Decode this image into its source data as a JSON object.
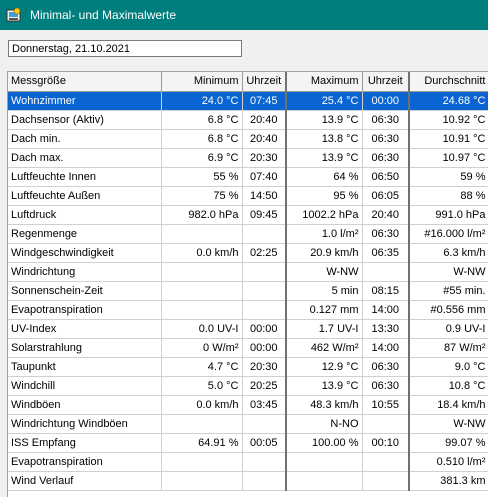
{
  "window": {
    "title": "Minimal- und Maximalwerte"
  },
  "date_field": {
    "value": "Donnerstag, 21.10.2021"
  },
  "table": {
    "headers": [
      "Messgröße",
      "Minimum",
      "Uhrzeit",
      "Maximum",
      "Uhrzeit",
      "Durchschnitt"
    ],
    "rows": [
      [
        "Wohnzimmer",
        "24.0 °C",
        "07:45",
        "25.4 °C",
        "00:00",
        "24.68 °C"
      ],
      [
        "Dachsensor (Aktiv)",
        "6.8 °C",
        "20:40",
        "13.9 °C",
        "06:30",
        "10.92 °C"
      ],
      [
        "Dach min.",
        "6.8 °C",
        "20:40",
        "13.8 °C",
        "06:30",
        "10.91 °C"
      ],
      [
        "Dach max.",
        "6.9 °C",
        "20:30",
        "13.9 °C",
        "06:30",
        "10.97 °C"
      ],
      [
        "Luftfeuchte Innen",
        "55 %",
        "07:40",
        "64 %",
        "06:50",
        "59 %"
      ],
      [
        "Luftfeuchte Außen",
        "75 %",
        "14:50",
        "95 %",
        "06:05",
        "88 %"
      ],
      [
        "Luftdruck",
        "982.0 hPa",
        "09:45",
        "1002.2 hPa",
        "20:40",
        "991.0 hPa"
      ],
      [
        "Regenmenge",
        "",
        "",
        "1.0 l/m²",
        "06:30",
        "#16.000 l/m²"
      ],
      [
        "Windgeschwindigkeit",
        "0.0 km/h",
        "02:25",
        "20.9 km/h",
        "06:35",
        "6.3 km/h"
      ],
      [
        "Windrichtung",
        "",
        "",
        "W-NW",
        "",
        "W-NW"
      ],
      [
        "Sonnenschein-Zeit",
        "",
        "",
        "5 min",
        "08:15",
        "#55 min."
      ],
      [
        "Evapotranspiration",
        "",
        "",
        "0.127 mm",
        "14:00",
        "#0.556 mm"
      ],
      [
        "UV-Index",
        "0.0 UV-I",
        "00:00",
        "1.7 UV-I",
        "13:30",
        "0.9 UV-I"
      ],
      [
        "Solarstrahlung",
        "0 W/m²",
        "00:00",
        "462 W/m²",
        "14:00",
        "87 W/m²"
      ],
      [
        "Taupunkt",
        "4.7 °C",
        "20:30",
        "12.9 °C",
        "06:30",
        "9.0 °C"
      ],
      [
        "Windchill",
        "5.0 °C",
        "20:25",
        "13.9 °C",
        "06:30",
        "10.8 °C"
      ],
      [
        "Windböen",
        "0.0 km/h",
        "03:45",
        "48.3 km/h",
        "10:55",
        "18.4 km/h"
      ],
      [
        "Windrichtung Windböen",
        "",
        "",
        "N-NO",
        "",
        "W-NW"
      ],
      [
        "ISS Empfang",
        "64.91 %",
        "00:05",
        "100.00 %",
        "00:10",
        "99.07 %"
      ],
      [
        "Evapotranspiration",
        "",
        "",
        "",
        "",
        "0.510 l/m²"
      ],
      [
        "Wind Verlauf",
        "",
        "",
        "",
        "",
        "381.3 km"
      ]
    ],
    "selected_row": 0
  },
  "icons": {
    "app": "app-icon"
  },
  "colors": {
    "titlebar": "#007d7d",
    "selection": "#0a64d2"
  }
}
